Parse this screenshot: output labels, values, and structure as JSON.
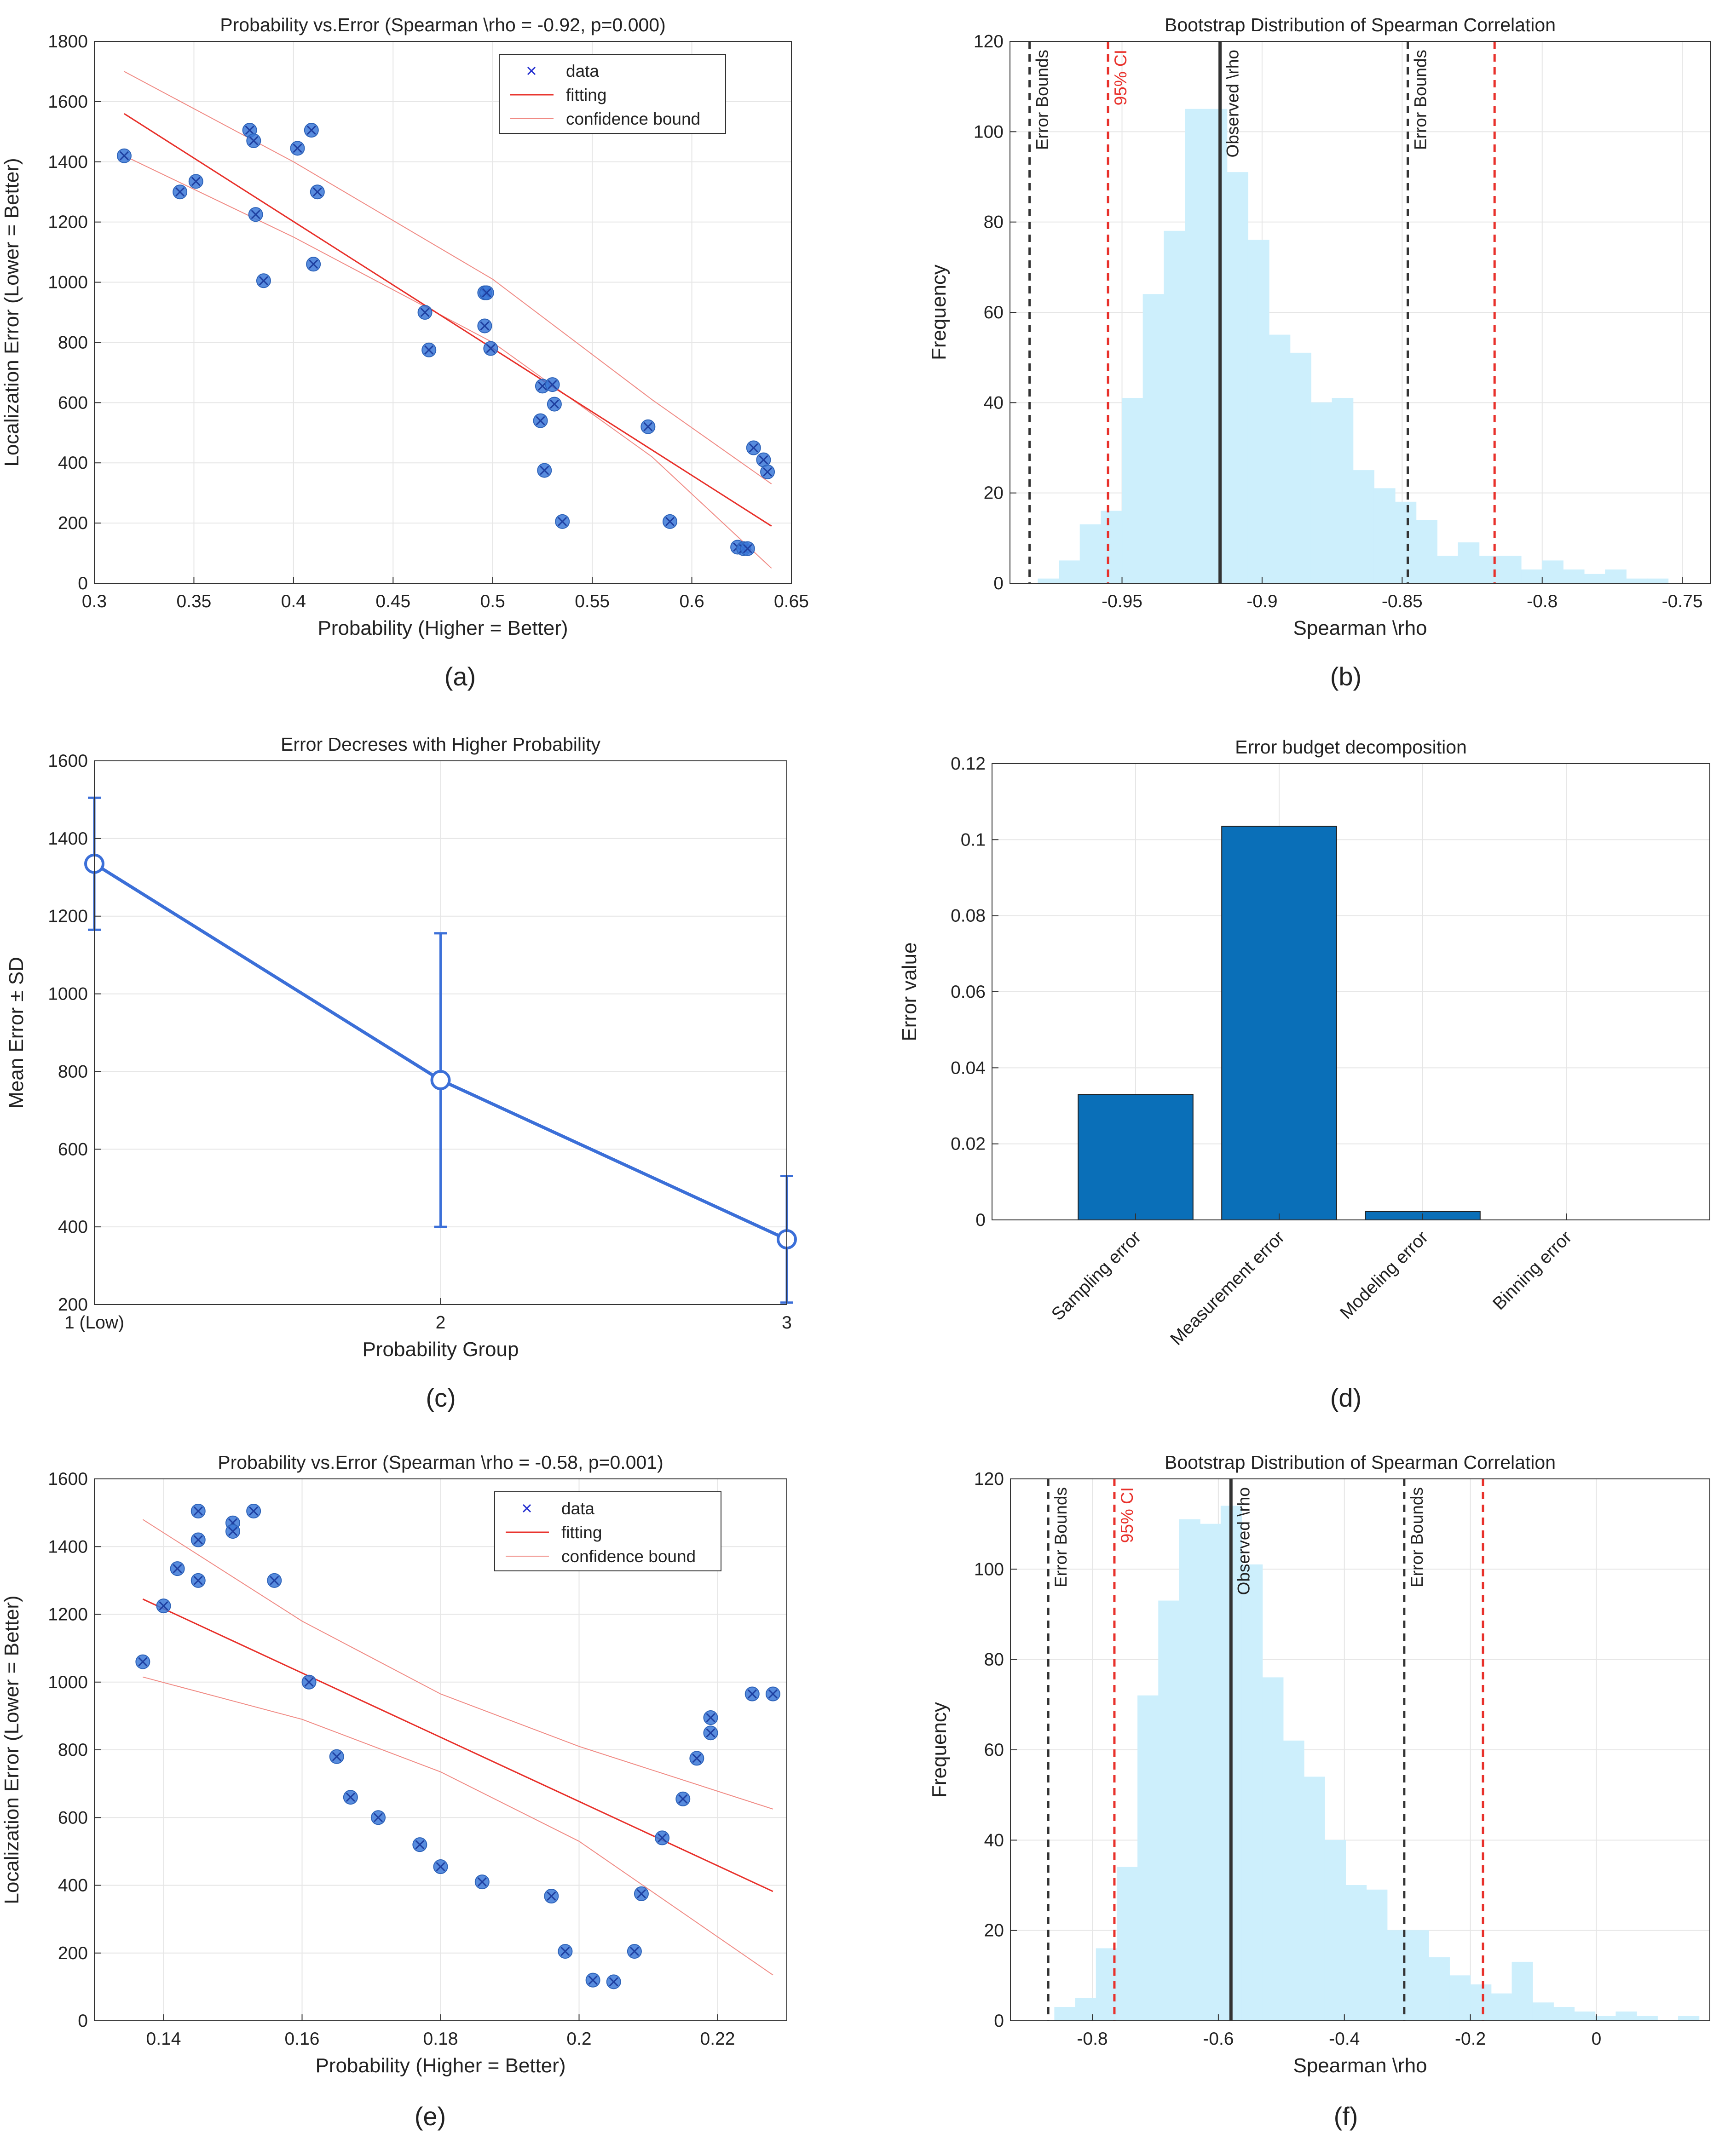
{
  "colors": {
    "marker": "#3b78d8",
    "marker_x": "#1e3fa0",
    "fit": "#e8302a",
    "bound": "#f08a84",
    "hist": "#cdeffc",
    "ci": "#e8302a",
    "bounds_line": "#333333",
    "observed": "#333333",
    "bar": "#0a6fb8",
    "line": "#3b6fd8",
    "grid": "#e6e6e6",
    "axis": "#333333"
  },
  "chart_data": [
    {
      "id": "a",
      "type": "scatter",
      "panel_label": "(a)",
      "title": "Probability vs.Error (Spearman \\rho = -0.92,  p=0.000)",
      "xlabel": "Probability (Higher = Better)",
      "ylabel": "Localization Error (Lower = Better)",
      "xlim": [
        0.3,
        0.65
      ],
      "ylim": [
        0,
        1800
      ],
      "xticks": [
        0.3,
        0.35,
        0.4,
        0.45,
        0.5,
        0.55,
        0.6,
        0.65
      ],
      "xticklabels": [
        "0.3",
        "0.35",
        "0.4",
        "0.45",
        "0.5",
        "0.55",
        "0.6",
        "0.65"
      ],
      "yticks": [
        0,
        200,
        400,
        600,
        800,
        1000,
        1200,
        1400,
        1600,
        1800
      ],
      "yticklabels": [
        "0",
        "200",
        "400",
        "600",
        "800",
        "1000",
        "1200",
        "1400",
        "1600",
        "1800"
      ],
      "legend": [
        "data",
        "fitting",
        "confidence bound"
      ],
      "legend_position": "top-right",
      "points": [
        [
          0.315,
          1420
        ],
        [
          0.343,
          1300
        ],
        [
          0.351,
          1335
        ],
        [
          0.378,
          1505
        ],
        [
          0.38,
          1470
        ],
        [
          0.381,
          1225
        ],
        [
          0.385,
          1005
        ],
        [
          0.402,
          1445
        ],
        [
          0.409,
          1505
        ],
        [
          0.41,
          1060
        ],
        [
          0.412,
          1300
        ],
        [
          0.466,
          900
        ],
        [
          0.468,
          775
        ],
        [
          0.496,
          965
        ],
        [
          0.497,
          965
        ],
        [
          0.496,
          855
        ],
        [
          0.499,
          780
        ],
        [
          0.524,
          540
        ],
        [
          0.525,
          655
        ],
        [
          0.526,
          375
        ],
        [
          0.53,
          660
        ],
        [
          0.531,
          595
        ],
        [
          0.535,
          205
        ],
        [
          0.578,
          520
        ],
        [
          0.589,
          205
        ],
        [
          0.623,
          120
        ],
        [
          0.626,
          115
        ],
        [
          0.628,
          115
        ],
        [
          0.631,
          450
        ],
        [
          0.636,
          410
        ],
        [
          0.638,
          370
        ]
      ],
      "fit_line": [
        [
          0.315,
          1560
        ],
        [
          0.64,
          190
        ]
      ],
      "upper_bound": [
        [
          0.315,
          1700
        ],
        [
          0.4,
          1400
        ],
        [
          0.5,
          1010
        ],
        [
          0.58,
          610
        ],
        [
          0.64,
          330
        ]
      ],
      "lower_bound": [
        [
          0.315,
          1420
        ],
        [
          0.4,
          1150
        ],
        [
          0.5,
          800
        ],
        [
          0.58,
          420
        ],
        [
          0.64,
          50
        ]
      ]
    },
    {
      "id": "b",
      "type": "histogram",
      "panel_label": "(b)",
      "title": "Bootstrap Distribution of Spearman Correlation",
      "xlabel": "Spearman \\rho",
      "ylabel": "Frequency",
      "xlim": [
        -0.99,
        -0.74
      ],
      "ylim": [
        0,
        120
      ],
      "xticks": [
        -0.95,
        -0.9,
        -0.85,
        -0.8,
        -0.75
      ],
      "xticklabels": [
        "-0.95",
        "-0.9",
        "-0.85",
        "-0.8",
        "-0.75"
      ],
      "yticks": [
        0,
        20,
        40,
        60,
        80,
        100,
        120
      ],
      "yticklabels": [
        "0",
        "20",
        "40",
        "60",
        "80",
        "100",
        "120"
      ],
      "bin_start": -0.98,
      "bin_width": 0.0075,
      "counts": [
        1,
        5,
        13,
        16,
        41,
        64,
        78,
        105,
        105,
        91,
        76,
        55,
        51,
        40,
        41,
        25,
        21,
        18,
        14,
        6,
        9,
        6,
        6,
        3,
        5,
        3,
        2,
        3,
        1,
        1
      ],
      "vlines": [
        {
          "x": -0.983,
          "style": "bounds",
          "label": "Error Bounds"
        },
        {
          "x": -0.955,
          "style": "ci",
          "label": "95% CI"
        },
        {
          "x": -0.915,
          "style": "observed",
          "label": "Observed \\rho"
        },
        {
          "x": -0.848,
          "style": "bounds",
          "label": "Error Bounds"
        },
        {
          "x": -0.817,
          "style": "ci",
          "label": ""
        }
      ]
    },
    {
      "id": "c",
      "type": "line",
      "panel_label": "(c)",
      "title": "Error Decreses with Higher Probability",
      "xlabel": "Probability Group",
      "ylabel": "Mean Error ± SD",
      "xlim": [
        1,
        3
      ],
      "ylim": [
        200,
        1600
      ],
      "xticks": [
        1,
        2,
        3
      ],
      "xticklabels": [
        "1 (Low)",
        "2",
        "3"
      ],
      "yticks": [
        200,
        400,
        600,
        800,
        1000,
        1200,
        1400,
        1600
      ],
      "yticklabels": [
        "200",
        "400",
        "600",
        "800",
        "1000",
        "1200",
        "1400",
        "1600"
      ],
      "x": [
        1,
        2,
        3
      ],
      "values": [
        1335,
        778,
        368
      ],
      "sd": [
        170,
        378,
        163
      ]
    },
    {
      "id": "d",
      "type": "bar",
      "panel_label": "(d)",
      "title": "Error budget decomposition",
      "xlabel": "",
      "ylabel": "Error value",
      "ylim": [
        0,
        0.12
      ],
      "yticks": [
        0,
        0.02,
        0.04,
        0.06,
        0.08,
        0.1,
        0.12
      ],
      "yticklabels": [
        "0",
        "0.02",
        "0.04",
        "0.06",
        "0.08",
        "0.1",
        "0.12"
      ],
      "categories": [
        "Sampling error",
        "Measurement error",
        "Modeling error",
        "Binning error"
      ],
      "values": [
        0.033,
        0.1035,
        0.0022,
        0
      ]
    },
    {
      "id": "e",
      "type": "scatter",
      "panel_label": "(e)",
      "title": "Probability vs.Error (Spearman \\rho = -0.58,  p=0.001)",
      "xlabel": "Probability (Higher = Better)",
      "ylabel": "Localization Error (Lower = Better)",
      "xlim": [
        0.13,
        0.23
      ],
      "ylim": [
        0,
        1600
      ],
      "xticks": [
        0.14,
        0.16,
        0.18,
        0.2,
        0.22
      ],
      "xticklabels": [
        "0.14",
        "0.16",
        "0.18",
        "0.2",
        "0.22"
      ],
      "yticks": [
        0,
        200,
        400,
        600,
        800,
        1000,
        1200,
        1400,
        1600
      ],
      "yticklabels": [
        "0",
        "200",
        "400",
        "600",
        "800",
        "1000",
        "1200",
        "1400",
        "1600"
      ],
      "legend": [
        "data",
        "fitting",
        "confidence bound"
      ],
      "legend_position": "top-right",
      "points": [
        [
          0.137,
          1060
        ],
        [
          0.14,
          1225
        ],
        [
          0.142,
          1335
        ],
        [
          0.145,
          1505
        ],
        [
          0.145,
          1420
        ],
        [
          0.145,
          1300
        ],
        [
          0.15,
          1470
        ],
        [
          0.15,
          1445
        ],
        [
          0.153,
          1505
        ],
        [
          0.156,
          1300
        ],
        [
          0.161,
          1000
        ],
        [
          0.165,
          780
        ],
        [
          0.167,
          660
        ],
        [
          0.171,
          600
        ],
        [
          0.177,
          520
        ],
        [
          0.18,
          455
        ],
        [
          0.186,
          410
        ],
        [
          0.196,
          368
        ],
        [
          0.198,
          205
        ],
        [
          0.202,
          120
        ],
        [
          0.205,
          115
        ],
        [
          0.208,
          205
        ],
        [
          0.209,
          375
        ],
        [
          0.212,
          540
        ],
        [
          0.215,
          655
        ],
        [
          0.217,
          775
        ],
        [
          0.219,
          895
        ],
        [
          0.219,
          850
        ],
        [
          0.225,
          965
        ],
        [
          0.228,
          965
        ]
      ],
      "fit_line": [
        [
          0.137,
          1245
        ],
        [
          0.228,
          382
        ]
      ],
      "upper_bound": [
        [
          0.137,
          1480
        ],
        [
          0.16,
          1180
        ],
        [
          0.18,
          965
        ],
        [
          0.2,
          810
        ],
        [
          0.228,
          625
        ]
      ],
      "lower_bound": [
        [
          0.137,
          1015
        ],
        [
          0.16,
          890
        ],
        [
          0.18,
          735
        ],
        [
          0.2,
          530
        ],
        [
          0.228,
          135
        ]
      ]
    },
    {
      "id": "f",
      "type": "histogram",
      "panel_label": "(f)",
      "title": "Bootstrap Distribution of Spearman Correlation",
      "xlabel": "Spearman \\rho",
      "ylabel": "Frequency",
      "xlim": [
        -0.93,
        0.18
      ],
      "ylim": [
        0,
        120
      ],
      "xticks": [
        -0.8,
        -0.6,
        -0.4,
        -0.2,
        0
      ],
      "xticklabels": [
        "-0.8",
        "-0.6",
        "-0.4",
        "-0.2",
        "0"
      ],
      "yticks": [
        0,
        20,
        40,
        60,
        80,
        100,
        120
      ],
      "yticklabels": [
        "0",
        "20",
        "40",
        "60",
        "80",
        "100",
        "120"
      ],
      "bin_start": -0.86,
      "bin_width": 0.033,
      "counts": [
        3,
        5,
        16,
        34,
        72,
        93,
        111,
        110,
        114,
        101,
        76,
        62,
        54,
        40,
        30,
        29,
        20,
        20,
        14,
        10,
        8,
        6,
        13,
        4,
        3,
        2,
        1,
        2,
        1,
        0,
        1
      ],
      "vlines": [
        {
          "x": -0.87,
          "style": "bounds",
          "label": "Error Bounds"
        },
        {
          "x": -0.765,
          "style": "ci",
          "label": "95% CI"
        },
        {
          "x": -0.58,
          "style": "observed",
          "label": "Observed \\rho"
        },
        {
          "x": -0.305,
          "style": "bounds",
          "label": "Error Bounds"
        },
        {
          "x": -0.18,
          "style": "ci",
          "label": ""
        }
      ]
    }
  ]
}
